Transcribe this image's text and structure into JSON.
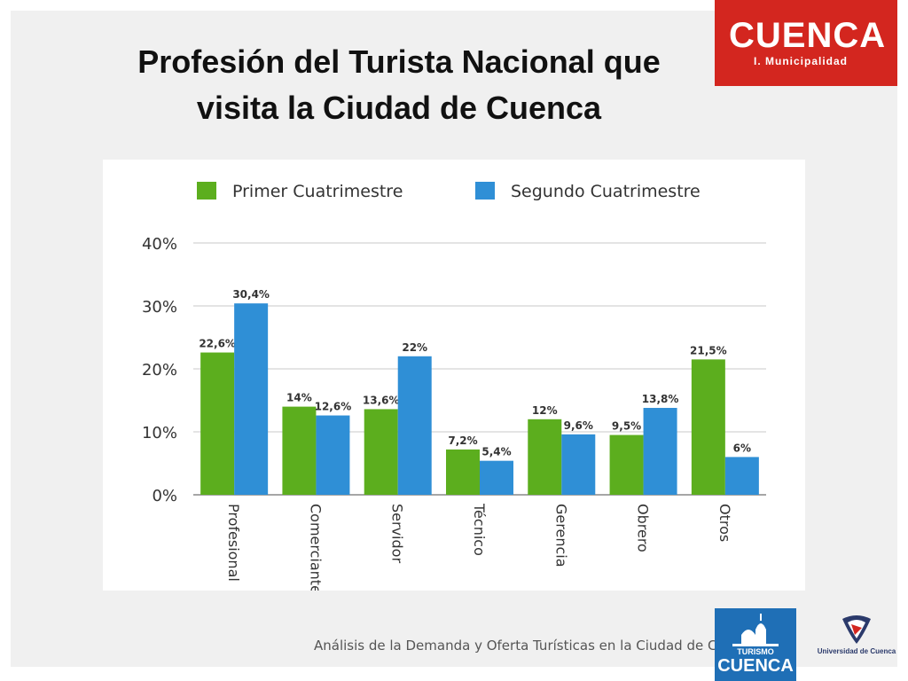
{
  "slide": {
    "title_line1": "Profesión del Turista Nacional que",
    "title_line2": "visita la Ciudad de Cuenca",
    "footer": "Análisis de la Demanda y Oferta Turísticas en la Ciudad de Cuenca"
  },
  "logos": {
    "cuenca_wordmark": "CUENCA",
    "cuenca_sub": "I. Municipalidad",
    "turismo_small": "TURISMO",
    "turismo_big": "CUENCA",
    "university": "Universidad de Cuenca"
  },
  "colors": {
    "series1": "#5cae1e",
    "series2": "#2f8fd6",
    "brand_red": "#d3261f",
    "brand_blue": "#1f6fb6"
  },
  "chart_data": {
    "type": "bar",
    "title": "",
    "xlabel": "",
    "ylabel": "",
    "categories": [
      "Profesional",
      "Comerciante",
      "Servidor",
      "Técnico",
      "Gerencia",
      "Obrero",
      "Otros"
    ],
    "series": [
      {
        "name": "Primer Cuatrimestre",
        "values": [
          22.6,
          14,
          13.6,
          7.2,
          12,
          9.5,
          21.5
        ],
        "labels": [
          "22,6%",
          "14%",
          "13,6%",
          "7,2%",
          "12%",
          "9,5%",
          "21,5%"
        ]
      },
      {
        "name": "Segundo Cuatrimestre",
        "values": [
          30.4,
          12.6,
          22,
          5.4,
          9.6,
          13.8,
          6
        ],
        "labels": [
          "30,4%",
          "12,6%",
          "22%",
          "5,4%",
          "9,6%",
          "13,8%",
          "6%"
        ]
      }
    ],
    "yticks": [
      "0%",
      "10%",
      "20%",
      "30%",
      "40%"
    ],
    "ylim": [
      0,
      40
    ],
    "grid": true,
    "legend_position": "top"
  }
}
